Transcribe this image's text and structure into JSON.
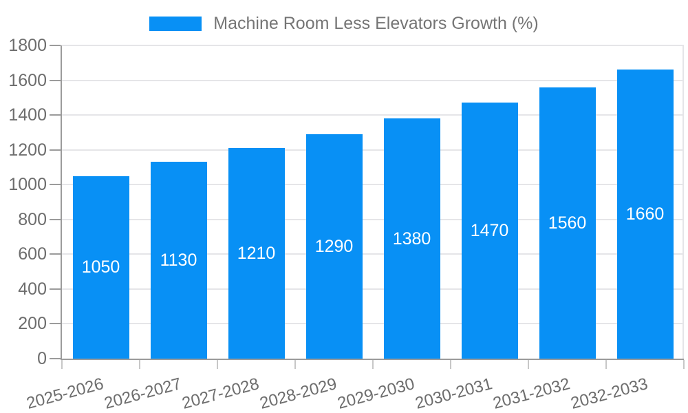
{
  "chart_data": {
    "type": "bar",
    "title": "Machine Room Less Elevators Growth (%)",
    "categories": [
      "2025-2026",
      "2026-2027",
      "2027-2028",
      "2028-2029",
      "2029-2030",
      "2030-2031",
      "2031-2032",
      "2032-2033"
    ],
    "values": [
      1050,
      1130,
      1210,
      1290,
      1380,
      1470,
      1560,
      1660
    ],
    "xlabel": "",
    "ylabel": "",
    "ylim": [
      0,
      1800
    ],
    "ytick_step": 200,
    "yticks": [
      0,
      200,
      400,
      600,
      800,
      1000,
      1200,
      1400,
      1600,
      1800
    ],
    "grid": true,
    "legend_position": "top",
    "colors": {
      "bar": "#0890f5",
      "value_label": "#ffffff",
      "tick_label": "#6d6d6d",
      "legend_text": "#757575",
      "gridline": "#e5e5e8",
      "axis_line": "#9b9b9b",
      "x_tick": "#c7c7c7"
    }
  }
}
